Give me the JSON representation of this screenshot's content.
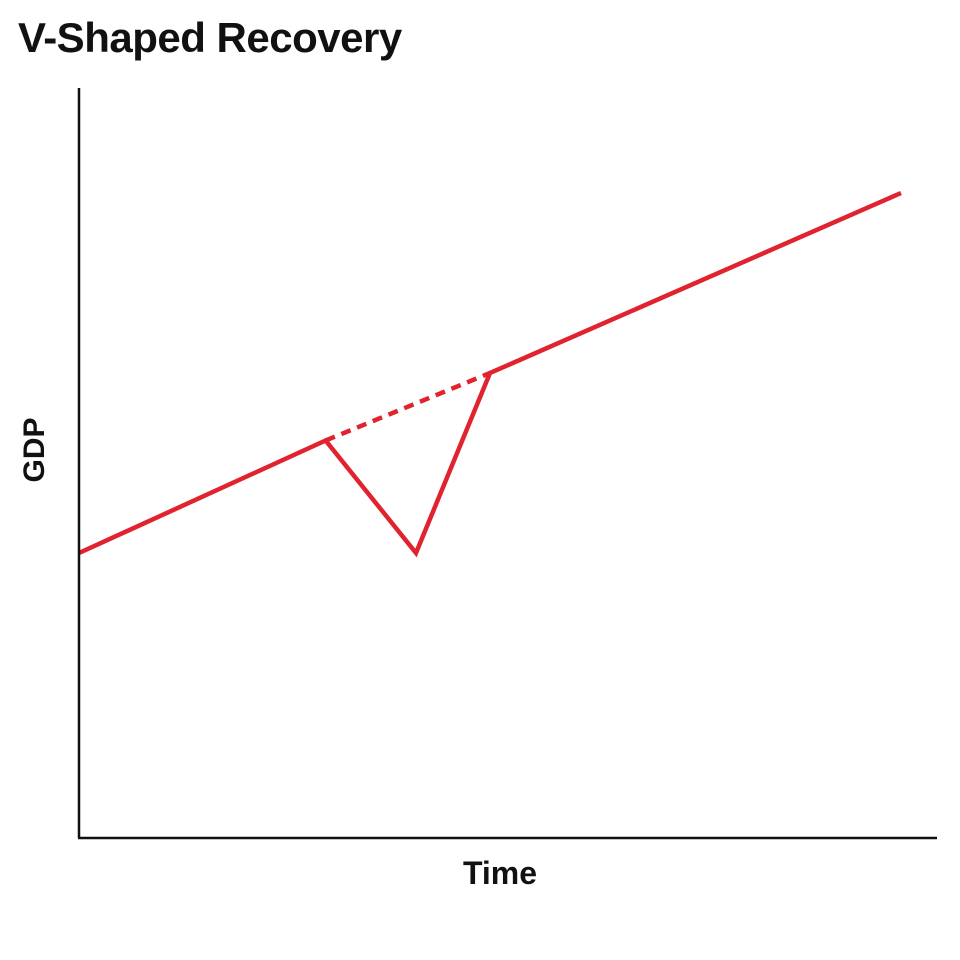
{
  "chart_data": {
    "type": "line",
    "title": "V-Shaped Recovery",
    "xlabel": "Time",
    "ylabel": "GDP",
    "xlim": [
      0,
      10
    ],
    "ylim": [
      0,
      10
    ],
    "grid": false,
    "series": [
      {
        "style": "solid",
        "x": [
          0,
          3.0,
          4.1,
          5.0,
          10
        ],
        "y": [
          3.8,
          5.3,
          3.8,
          6.2,
          8.6
        ]
      },
      {
        "style": "dashed",
        "x": [
          3.0,
          5.0
        ],
        "y": [
          5.3,
          6.2
        ]
      }
    ],
    "colors": {
      "line": "#e0232e",
      "axis": "#111111"
    }
  }
}
